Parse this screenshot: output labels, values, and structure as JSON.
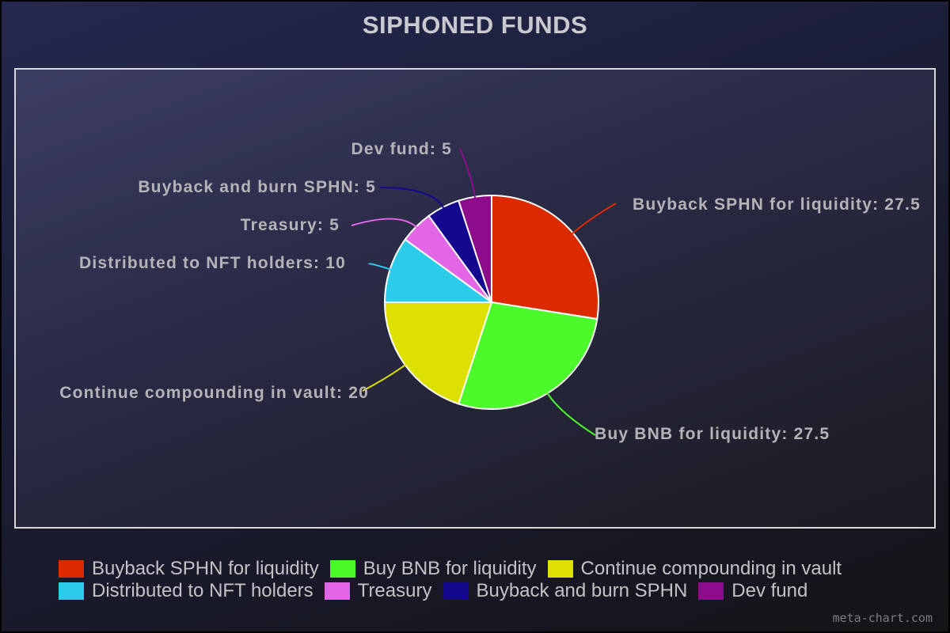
{
  "chart_data": {
    "type": "pie",
    "title": "SIPHONED FUNDS",
    "categories": [
      "Buyback SPHN for liquidity",
      "Buy BNB for liquidity",
      "Continue compounding in vault",
      "Distributed to NFT holders",
      "Treasury",
      "Buyback and burn SPHN",
      "Dev fund"
    ],
    "values": [
      27.5,
      27.5,
      20,
      10,
      5,
      5,
      5
    ],
    "colors": [
      "#dc2a00",
      "#4cf92a",
      "#dde000",
      "#2accea",
      "#e266e6",
      "#16088e",
      "#8c0c8c"
    ],
    "slice_labels": [
      "Buyback SPHN for liquidity: 27.5",
      "Buy BNB for liquidity: 27.5",
      "Continue compounding in vault: 20",
      "Distributed to NFT holders: 10",
      "Treasury: 5",
      "Buyback and burn SPHN: 5",
      "Dev fund: 5"
    ],
    "legend_position": "bottom"
  },
  "watermark": "meta-chart.com"
}
